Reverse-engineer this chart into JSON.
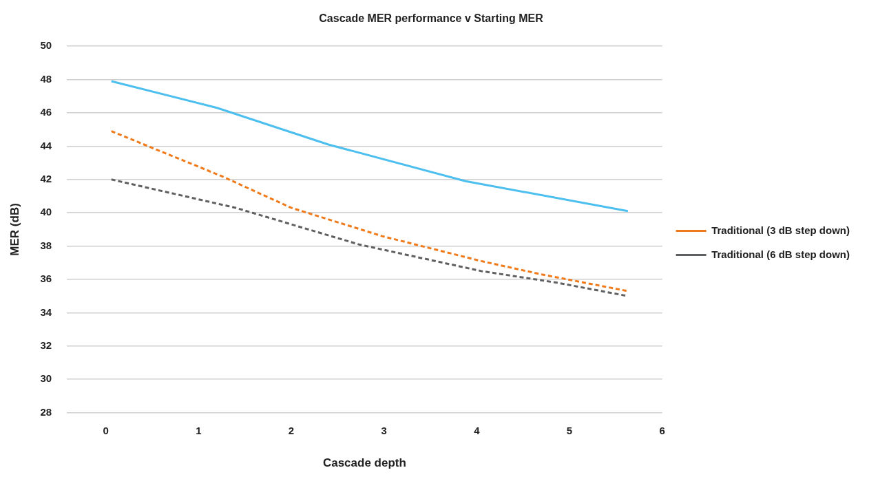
{
  "chart_data": {
    "type": "line",
    "title": "Cascade MER performance v Starting MER",
    "xlabel": "Cascade depth",
    "ylabel": "MER (dB)",
    "xlim": [
      -0.42,
      6
    ],
    "xticks": [
      0,
      1,
      2,
      3,
      4,
      5,
      6
    ],
    "ylim": [
      28,
      50
    ],
    "yticks": [
      28,
      30,
      32,
      34,
      36,
      38,
      40,
      42,
      44,
      46,
      48,
      50
    ],
    "grid": "y",
    "legend": "right",
    "marker": "none",
    "series": [
      {
        "color": "#4dbfef",
        "line_style": "solid",
        "x": [
          0.06,
          1.2,
          2.4,
          3.88,
          5.63
        ],
        "values": [
          47.9,
          46.3,
          44.1,
          41.9,
          40.1
        ]
      },
      {
        "name": "Traditional (3 dB step down)",
        "color": "#f07a1a",
        "line_style": "dashed",
        "x": [
          0.06,
          1.25,
          2.0,
          2.98,
          4.05,
          4.7,
          5.63
        ],
        "values": [
          44.9,
          42.2,
          40.3,
          38.6,
          37.1,
          36.3,
          35.3
        ]
      },
      {
        "name": "Traditional (6 dB step down)",
        "color": "#5f6062",
        "line_style": "dashed",
        "x": [
          0.06,
          1.4,
          2.73,
          4.05,
          4.87,
          5.63
        ],
        "values": [
          42.0,
          40.3,
          38.1,
          36.5,
          35.8,
          35.0
        ]
      }
    ]
  }
}
